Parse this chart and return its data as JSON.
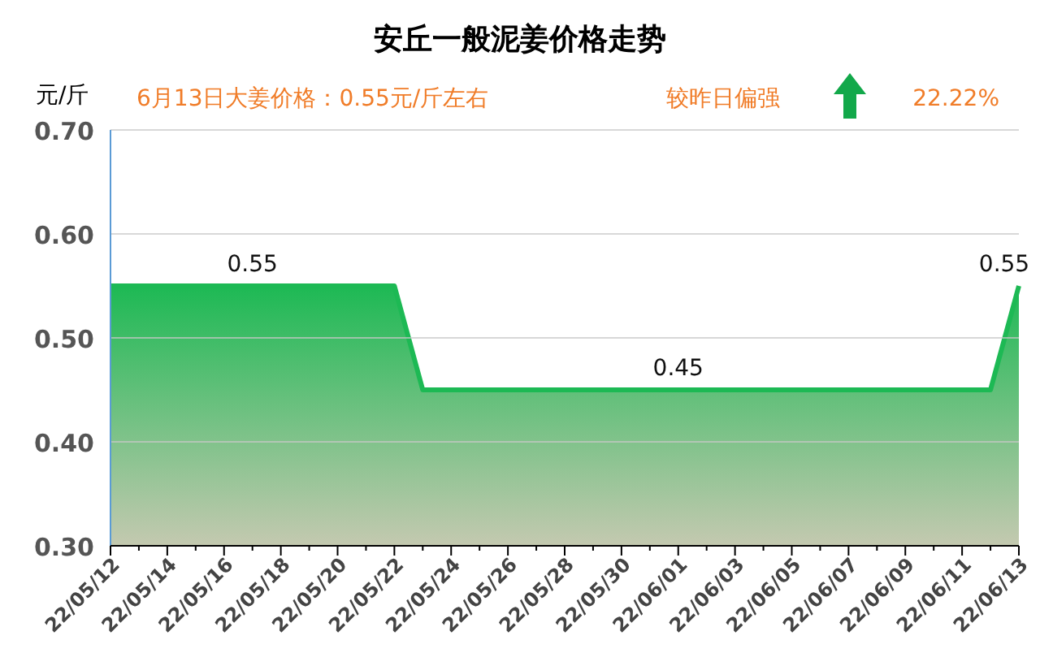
{
  "chart_data": {
    "type": "area",
    "title": "安丘一般泥姜价格走势",
    "ylabel": "元/斤",
    "annotations": [
      "6月13日大姜价格：0.55元/斤左右",
      "较昨日偏强",
      "22.22%"
    ],
    "categories": [
      "22/05/12",
      null,
      "22/05/14",
      null,
      "22/05/16",
      null,
      "22/05/18",
      null,
      "22/05/20",
      null,
      "22/05/22",
      null,
      "22/05/24",
      null,
      "22/05/26",
      null,
      "22/05/28",
      null,
      "22/05/30",
      null,
      "22/06/01",
      null,
      "22/06/03",
      null,
      "22/06/05",
      null,
      "22/06/07",
      null,
      "22/06/09",
      null,
      "22/06/11",
      null,
      "22/06/13"
    ],
    "series": [
      {
        "color": "#1db954",
        "values": [
          0.55,
          0.55,
          0.55,
          0.55,
          0.55,
          0.55,
          0.55,
          0.55,
          0.55,
          0.55,
          0.55,
          0.45,
          0.45,
          0.45,
          0.45,
          0.45,
          0.45,
          0.45,
          0.45,
          0.45,
          0.45,
          0.45,
          0.45,
          0.45,
          0.45,
          0.45,
          0.45,
          0.45,
          0.45,
          0.45,
          0.45,
          0.45,
          0.55
        ],
        "value_labels": [
          null,
          null,
          null,
          null,
          null,
          "0.55",
          null,
          null,
          null,
          null,
          null,
          null,
          null,
          null,
          null,
          null,
          null,
          null,
          null,
          null,
          "0.45",
          null,
          null,
          null,
          null,
          null,
          null,
          null,
          null,
          null,
          null,
          null,
          "0.55"
        ]
      }
    ],
    "ylim": [
      0.3,
      0.7
    ],
    "yticks": [
      "0.30",
      "0.40",
      "0.50",
      "0.60",
      "0.70"
    ],
    "grid": "y"
  }
}
